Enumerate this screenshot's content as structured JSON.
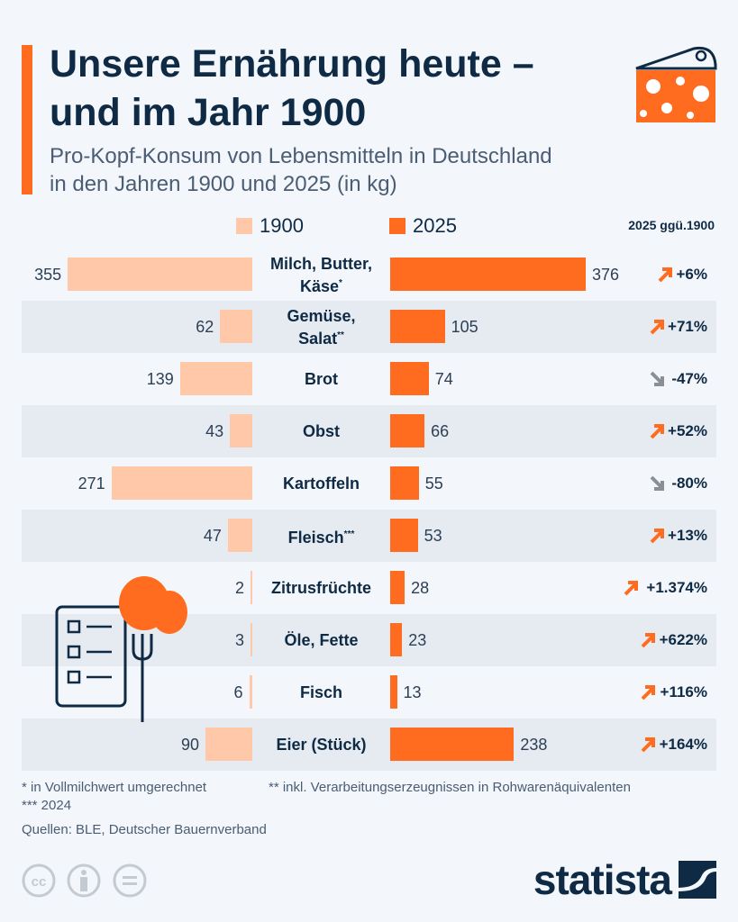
{
  "header": {
    "title_line1": "Unsere Ernährung heute –",
    "title_line2": "und im Jahr 1900",
    "subtitle_line1": "Pro-Kopf-Konsum von Lebensmitteln in Deutschland",
    "subtitle_line2": "in den Jahren 1900 und 2025 (in kg)"
  },
  "colors": {
    "c1900": "#ffc8a8",
    "c2025": "#ff6b1f",
    "up": "#ff6b1f",
    "down": "#8a8f96",
    "navy": "#0f2a44"
  },
  "chart_data": {
    "type": "bar",
    "title": "Unsere Ernährung heute – und im Jahr 1900",
    "unit": "kg",
    "change_header": "2025 ggü.1900",
    "categories": [
      "Milch, Butter, Käse*",
      "Gemüse, Salat**",
      "Brot",
      "Obst",
      "Kartoffeln",
      "Fleisch***",
      "Zitrusfrüchte",
      "Öle, Fette",
      "Fisch",
      "Eier (Stück)"
    ],
    "series": [
      {
        "name": "1900",
        "values": [
          355,
          62,
          139,
          43,
          271,
          47,
          2,
          3,
          6,
          90
        ]
      },
      {
        "name": "2025",
        "values": [
          376,
          105,
          74,
          66,
          55,
          53,
          28,
          23,
          13,
          238
        ]
      }
    ],
    "change": [
      "+6%",
      "+71%",
      "-47%",
      "+52%",
      "-80%",
      "+13%",
      "+1.374%",
      "+622%",
      "+116%",
      "+164%"
    ],
    "change_dir": [
      "up",
      "up",
      "down",
      "up",
      "down",
      "up",
      "up",
      "up",
      "up",
      "up"
    ],
    "legend": [
      "1900",
      "2025"
    ],
    "legend_position": "top"
  },
  "footer": {
    "note1": "*  in Vollmilchwert umgerechnet",
    "note2": "** inkl. Verarbeitungserzeugnissen in Rohwarenäquivalenten",
    "note3": "*** 2024",
    "source": "Quellen: BLE, Deutscher Bauernverband",
    "brand": "statista"
  }
}
